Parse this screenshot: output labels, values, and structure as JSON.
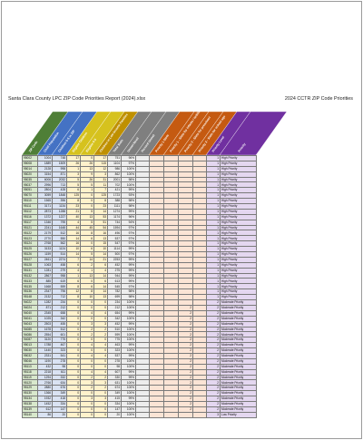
{
  "document": {
    "title_left": "Santa Clara County LPC ZIP Code Priorities Report (2024).xlsx",
    "title_right": "2024 CCTR ZIP Code Priorities"
  },
  "table": {
    "columns": [
      {
        "label": "ZIP Code",
        "color": "#4f7f37",
        "fill": "#d8e8cc"
      },
      {
        "label": "Child Population",
        "color": "#4472c4",
        "fill": "#dae3f3"
      },
      {
        "label": "Children 0-5 in ZIP",
        "color": "#4472c4",
        "fill": "#dae3f3"
      },
      {
        "label": "Eligible Children",
        "color": "#d6c21e",
        "fill": "#fff2cc"
      },
      {
        "label": "Eligible 0-5",
        "color": "#d6c21e",
        "fill": "#fff2cc"
      },
      {
        "label": "Children in Low Income Families",
        "color": "#bf9000",
        "fill": "#fff2cc"
      },
      {
        "label": "Total Slots",
        "color": "#7f7f7f",
        "fill": "#ededed"
      },
      {
        "label": "Unmet Need",
        "color": "#7f7f7f",
        "fill": "#ededed"
      },
      {
        "label": "Percent Unmet",
        "color": "#7f7f7f",
        "fill": "#ededed"
      },
      {
        "label": "Priority 1 Slots",
        "color": "#c55a11",
        "fill": "#fbe4d5"
      },
      {
        "label": "Priority 1 - Slots for infants / toddlers",
        "color": "#c55a11",
        "fill": "#fbe4d5"
      },
      {
        "label": "Priority 2 - Slots for preschool",
        "color": "#c55a11",
        "fill": "#fbe4d5"
      },
      {
        "label": "Priority 3 - Slots for school age",
        "color": "#c55a11",
        "fill": "#fbe4d5"
      },
      {
        "label": "Priority Level",
        "color": "#7030a0",
        "fill": "#e4d7f0"
      },
      {
        "label": "Priority",
        "color": "#7030a0",
        "fill": "#e4d7f0"
      }
    ],
    "rows": [
      [
        "95002",
        "1004",
        "748",
        "17",
        "0",
        "17",
        "751",
        "96%",
        "",
        "",
        "",
        "",
        "",
        "1",
        "High Priority"
      ],
      [
        "95008",
        "1889",
        "1509",
        "26",
        "26",
        "115",
        "1104",
        "97%",
        "",
        "",
        "",
        "",
        "",
        "1",
        "High Priority"
      ],
      [
        "95014",
        "2128",
        "998",
        "1",
        "13",
        "12",
        "986",
        "100%",
        "",
        "",
        "",
        "",
        "",
        "1",
        "High Priority"
      ],
      [
        "95020",
        "3154",
        "871",
        "3",
        "9",
        "3",
        "862",
        "100%",
        "",
        "",
        "",
        "",
        "",
        "1",
        "High Priority"
      ],
      [
        "95035",
        "6006",
        "2032",
        "5",
        "26",
        "31",
        "2001",
        "98%",
        "",
        "",
        "",
        "",
        "",
        "1",
        "High Priority"
      ],
      [
        "95037",
        "2996",
        "713",
        "5",
        "5",
        "11",
        "702",
        "100%",
        "",
        "",
        "",
        "",
        "",
        "1",
        "High Priority"
      ],
      [
        "95051",
        "2804",
        "428",
        "6",
        "1",
        "7",
        "421",
        "99%",
        "",
        "",
        "",
        "",
        "",
        "1",
        "High Priority"
      ],
      [
        "95070",
        "3059",
        "1848",
        "125",
        "0",
        "125",
        "1723",
        "93%",
        "",
        "",
        "",
        "",
        "",
        "1",
        "High Priority"
      ],
      [
        "95110",
        "1565",
        "396",
        "8",
        "0",
        "8",
        "388",
        "98%",
        "",
        "",
        "",
        "",
        "",
        "1",
        "High Priority"
      ],
      [
        "95111",
        "3171",
        "1134",
        "23",
        "0",
        "23",
        "1111",
        "98%",
        "",
        "",
        "",
        "",
        "",
        "1",
        "High Priority"
      ],
      [
        "95112",
        "2873",
        "1288",
        "21",
        "5",
        "14",
        "1274",
        "99%",
        "",
        "",
        "",
        "",
        "",
        "1",
        "High Priority"
      ],
      [
        "95116",
        "1372",
        "1227",
        "40",
        "13",
        "53",
        "1174",
        "96%",
        "",
        "",
        "",
        "",
        "",
        "1",
        "High Priority"
      ],
      [
        "95117",
        "1346",
        "795",
        "4",
        "5",
        "51",
        "744",
        "94%",
        "",
        "",
        "",
        "",
        "",
        "1",
        "High Priority"
      ],
      [
        "95121",
        "2241",
        "1648",
        "44",
        "45",
        "54",
        "1594",
        "97%",
        "",
        "",
        "",
        "",
        "",
        "1",
        "High Priority"
      ],
      [
        "95122",
        "2179",
        "512",
        "16",
        "8",
        "16",
        "496",
        "97%",
        "",
        "",
        "",
        "",
        "",
        "1",
        "High Priority"
      ],
      [
        "95123",
        "2770",
        "550",
        "14",
        "6",
        "13",
        "537",
        "97%",
        "",
        "",
        "",
        "",
        "",
        "1",
        "High Priority"
      ],
      [
        "95124",
        "2768",
        "562",
        "16",
        "0",
        "15",
        "547",
        "97%",
        "",
        "",
        "",
        "",
        "",
        "1",
        "High Priority"
      ],
      [
        "95125",
        "3133",
        "1124",
        "10",
        "6",
        "10",
        "1114",
        "99%",
        "",
        "",
        "",
        "",
        "",
        "1",
        "High Priority"
      ],
      [
        "95126",
        "1159",
        "514",
        "14",
        "5",
        "14",
        "500",
        "97%",
        "",
        "",
        "",
        "",
        "",
        "1",
        "High Priority"
      ],
      [
        "95127",
        "2461",
        "2274",
        "7",
        "14",
        "21",
        "2253",
        "99%",
        "",
        "",
        "",
        "",
        "",
        "1",
        "High Priority"
      ],
      [
        "95128",
        "1063",
        "458",
        "6",
        "2",
        "6",
        "452",
        "99%",
        "",
        "",
        "",
        "",
        "",
        "1",
        "High Priority"
      ],
      [
        "95131",
        "1281",
        "279",
        "4",
        "1",
        "4",
        "275",
        "99%",
        "",
        "",
        "",
        "",
        "",
        "1",
        "High Priority"
      ],
      [
        "95132",
        "2867",
        "958",
        "1",
        "13",
        "14",
        "944",
        "99%",
        "",
        "",
        "",
        "",
        "",
        "1",
        "High Priority"
      ],
      [
        "95133",
        "885",
        "619",
        "6",
        "0",
        "6",
        "613",
        "99%",
        "",
        "",
        "",
        "",
        "",
        "1",
        "High Priority"
      ],
      [
        "95135",
        "1668",
        "559",
        "8",
        "6",
        "14",
        "545",
        "97%",
        "",
        "",
        "",
        "",
        "",
        "1",
        "High Priority"
      ],
      [
        "95136",
        "2347",
        "796",
        "12",
        "8",
        "14",
        "782",
        "98%",
        "",
        "",
        "",
        "",
        "",
        "1",
        "High Priority"
      ],
      [
        "95148",
        "2132",
        "712",
        "8",
        "10",
        "13",
        "699",
        "98%",
        "",
        "",
        "",
        "",
        "",
        "1",
        "High Priority"
      ],
      [
        "94022",
        "1282",
        "234",
        "0",
        "0",
        "0",
        "234",
        "100%",
        "",
        "",
        "",
        "",
        "",
        "2",
        "Moderate Priority"
      ],
      [
        "94024",
        "871",
        "212",
        "0",
        "0",
        "0",
        "212",
        "100%",
        "",
        "",
        "",
        "2",
        "",
        "2",
        "Moderate Priority"
      ],
      [
        "94040",
        "2345",
        "658",
        "0",
        "4",
        "4",
        "654",
        "99%",
        "",
        "",
        "",
        "2",
        "",
        "2",
        "Moderate Priority"
      ],
      [
        "94041",
        "1025",
        "342",
        "0",
        "0",
        "0",
        "342",
        "100%",
        "",
        "",
        "",
        "2",
        "",
        "2",
        "Moderate Priority"
      ],
      [
        "94043",
        "2503",
        "455",
        "0",
        "3",
        "3",
        "452",
        "99%",
        "",
        "",
        "",
        "2",
        "",
        "2",
        "Moderate Priority"
      ],
      [
        "94085",
        "1678",
        "512",
        "0",
        "2",
        "2",
        "510",
        "100%",
        "",
        "",
        "",
        "2",
        "",
        "2",
        "Moderate Priority"
      ],
      [
        "94086",
        "2554",
        "601",
        "0",
        "2",
        "2",
        "599",
        "100%",
        "",
        "",
        "",
        "2",
        "",
        "2",
        "Moderate Priority"
      ],
      [
        "94087",
        "3120",
        "775",
        "0",
        "0",
        "0",
        "775",
        "100%",
        "",
        "",
        "",
        "2",
        "",
        "2",
        "Moderate Priority"
      ],
      [
        "95013",
        "1788",
        "467",
        "0",
        "4",
        "4",
        "463",
        "99%",
        "",
        "",
        "",
        "2",
        "",
        "2",
        "Moderate Priority"
      ],
      [
        "95030",
        "1440",
        "323",
        "0",
        "0",
        "0",
        "323",
        "100%",
        "",
        "",
        "",
        "2",
        "",
        "2",
        "Moderate Priority"
      ],
      [
        "95032",
        "2331",
        "541",
        "0",
        "4",
        "4",
        "537",
        "99%",
        "",
        "",
        "",
        "2",
        "",
        "2",
        "Moderate Priority"
      ],
      [
        "95046",
        "1190",
        "278",
        "0",
        "0",
        "0",
        "278",
        "100%",
        "",
        "",
        "",
        "2",
        "",
        "2",
        "Moderate Priority"
      ],
      [
        "95113",
        "432",
        "98",
        "0",
        "0",
        "0",
        "98",
        "100%",
        "",
        "",
        "",
        "2",
        "",
        "2",
        "Moderate Priority"
      ],
      [
        "95118",
        "2218",
        "611",
        "0",
        "4",
        "4",
        "607",
        "99%",
        "",
        "",
        "",
        "2",
        "",
        "2",
        "Moderate Priority"
      ],
      [
        "95119",
        "1294",
        "332",
        "0",
        "2",
        "2",
        "330",
        "99%",
        "",
        "",
        "",
        "2",
        "",
        "2",
        "Moderate Priority"
      ],
      [
        "95120",
        "2766",
        "634",
        "0",
        "3",
        "3",
        "631",
        "100%",
        "",
        "",
        "",
        "2",
        "",
        "2",
        "Moderate Priority"
      ],
      [
        "95129",
        "2880",
        "676",
        "0",
        "2",
        "2",
        "674",
        "100%",
        "",
        "",
        "",
        "2",
        "",
        "2",
        "Moderate Priority"
      ],
      [
        "95130",
        "1366",
        "349",
        "0",
        "0",
        "0",
        "349",
        "100%",
        "",
        "",
        "",
        "2",
        "",
        "2",
        "Moderate Priority"
      ],
      [
        "95134",
        "1932",
        "418",
        "0",
        "3",
        "3",
        "415",
        "99%",
        "",
        "",
        "",
        "2",
        "",
        "2",
        "Moderate Priority"
      ],
      [
        "95138",
        "1452",
        "334",
        "0",
        "0",
        "0",
        "334",
        "100%",
        "",
        "",
        "",
        "2",
        "",
        "2",
        "Moderate Priority"
      ],
      [
        "95139",
        "612",
        "147",
        "0",
        "0",
        "0",
        "147",
        "100%",
        "",
        "",
        "",
        "2",
        "",
        "2",
        "Moderate Priority"
      ],
      [
        "95140",
        "86",
        "20",
        "0",
        "0",
        "0",
        "20",
        "100%",
        "",
        "",
        "",
        "",
        "",
        "3",
        "Low Priority"
      ]
    ]
  }
}
